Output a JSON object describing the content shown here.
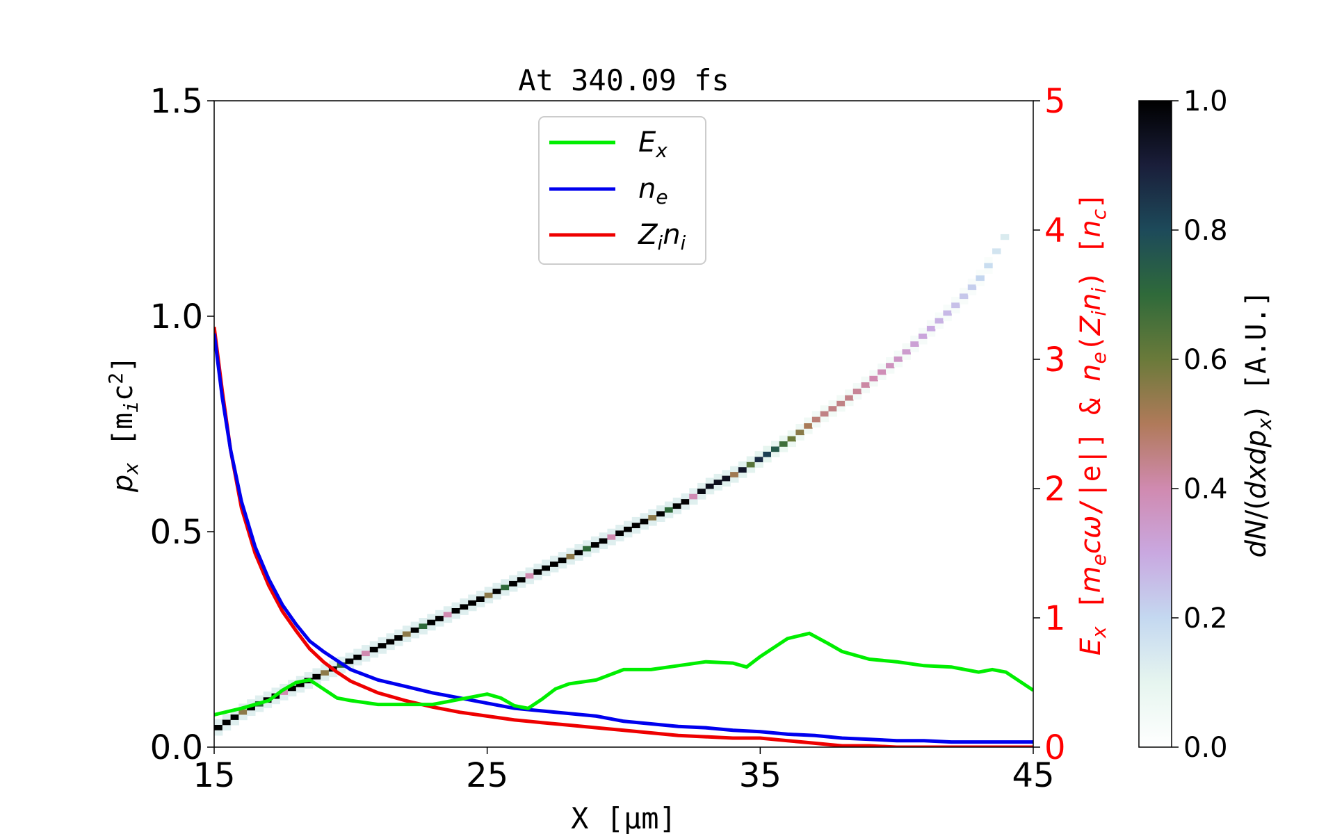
{
  "chart_data": {
    "type": "heatmap",
    "title": "At 340.09 fs",
    "xlabel": "X [μm]",
    "ylabel": "p_x [m_ic^2]",
    "y2label": "E_x [m_ecω/|e|] & n_e(Z_in_i) [n_c]",
    "colorbar_label": "dN/(dxdp_x) [A.U.]",
    "xlim": [
      15,
      45
    ],
    "ylim": [
      0,
      1.5
    ],
    "y2lim": [
      0,
      5
    ],
    "clim": [
      0,
      1
    ],
    "x_ticks": [
      "15",
      "25",
      "35",
      "45"
    ],
    "y_ticks": [
      "0.0",
      "0.5",
      "1.0",
      "1.5"
    ],
    "y2_ticks": [
      "0",
      "1",
      "2",
      "3",
      "4",
      "5"
    ],
    "colorbar_ticks": [
      "0.0",
      "0.2",
      "0.4",
      "0.6",
      "0.8",
      "1.0"
    ],
    "grid": false,
    "legend_position": "top-center",
    "colormap": "cubehelix_r",
    "colors": {
      "Ex": "#00ee00",
      "ne": "#0000ee",
      "Zini": "#ee0000",
      "right_axis": "#ff0000"
    },
    "phase_space_ridge": {
      "x": [
        15,
        16,
        17,
        18,
        19,
        20,
        21,
        22,
        23,
        24,
        25,
        26,
        27,
        28,
        29,
        30,
        31,
        32,
        33,
        34,
        35,
        36,
        37,
        38,
        39,
        40,
        41,
        42,
        43,
        44
      ],
      "px": [
        0.04,
        0.08,
        0.11,
        0.14,
        0.17,
        0.2,
        0.23,
        0.26,
        0.29,
        0.32,
        0.35,
        0.38,
        0.41,
        0.44,
        0.47,
        0.5,
        0.53,
        0.56,
        0.6,
        0.63,
        0.67,
        0.71,
        0.76,
        0.8,
        0.85,
        0.9,
        0.96,
        1.02,
        1.09,
        1.2
      ],
      "intensity": [
        1,
        1,
        1,
        1,
        1,
        1,
        1,
        1,
        1,
        1,
        1,
        1,
        1,
        1,
        1,
        1,
        1,
        1,
        0.95,
        0.95,
        0.85,
        0.6,
        0.45,
        0.45,
        0.4,
        0.35,
        0.3,
        0.25,
        0.2,
        0.12
      ]
    },
    "series": [
      {
        "name": "E_x",
        "axis": "right",
        "x": [
          15,
          16,
          17,
          17.5,
          18,
          18.5,
          19,
          19.5,
          20,
          21,
          22,
          23,
          24,
          25,
          25.5,
          26,
          26.5,
          27,
          27.5,
          28,
          29,
          30,
          31,
          32,
          33,
          34,
          34.5,
          35,
          36,
          36.8,
          37.5,
          38,
          39,
          40,
          41,
          42,
          43,
          43.5,
          44,
          45
        ],
        "y": [
          0.25,
          0.3,
          0.36,
          0.44,
          0.5,
          0.52,
          0.45,
          0.38,
          0.36,
          0.33,
          0.33,
          0.33,
          0.37,
          0.41,
          0.38,
          0.32,
          0.3,
          0.37,
          0.45,
          0.49,
          0.52,
          0.6,
          0.6,
          0.63,
          0.66,
          0.65,
          0.62,
          0.7,
          0.84,
          0.88,
          0.8,
          0.74,
          0.68,
          0.66,
          0.63,
          0.62,
          0.58,
          0.6,
          0.58,
          0.44
        ]
      },
      {
        "name": "n_e",
        "axis": "right",
        "x": [
          15,
          15.3,
          15.6,
          16,
          16.5,
          17,
          17.5,
          18,
          18.5,
          19,
          19.5,
          20,
          21,
          22,
          23,
          24,
          25,
          26,
          27,
          28,
          29,
          30,
          31,
          32,
          33,
          34,
          35,
          36,
          37,
          38,
          39,
          40,
          41,
          42,
          43,
          44,
          45
        ],
        "y": [
          3.2,
          2.7,
          2.3,
          1.9,
          1.55,
          1.3,
          1.1,
          0.95,
          0.82,
          0.74,
          0.67,
          0.6,
          0.52,
          0.47,
          0.42,
          0.38,
          0.34,
          0.3,
          0.28,
          0.26,
          0.24,
          0.2,
          0.18,
          0.16,
          0.15,
          0.13,
          0.12,
          0.1,
          0.09,
          0.07,
          0.06,
          0.05,
          0.05,
          0.04,
          0.04,
          0.04,
          0.04
        ]
      },
      {
        "name": "Z_in_i",
        "axis": "right",
        "x": [
          15,
          15.3,
          15.6,
          16,
          16.5,
          17,
          17.5,
          18,
          18.5,
          19,
          19.5,
          20,
          21,
          22,
          23,
          24,
          25,
          26,
          27,
          28,
          29,
          30,
          31,
          32,
          33,
          34,
          35,
          36,
          37,
          38,
          39,
          40,
          41,
          42,
          43,
          44,
          45
        ],
        "y": [
          3.25,
          2.75,
          2.3,
          1.85,
          1.5,
          1.25,
          1.05,
          0.9,
          0.76,
          0.66,
          0.58,
          0.51,
          0.42,
          0.36,
          0.31,
          0.27,
          0.24,
          0.21,
          0.19,
          0.17,
          0.15,
          0.13,
          0.11,
          0.09,
          0.08,
          0.07,
          0.07,
          0.05,
          0.03,
          0.01,
          0.01,
          0.0,
          0.0,
          0.0,
          0.0,
          0.0,
          0.0
        ]
      }
    ]
  }
}
